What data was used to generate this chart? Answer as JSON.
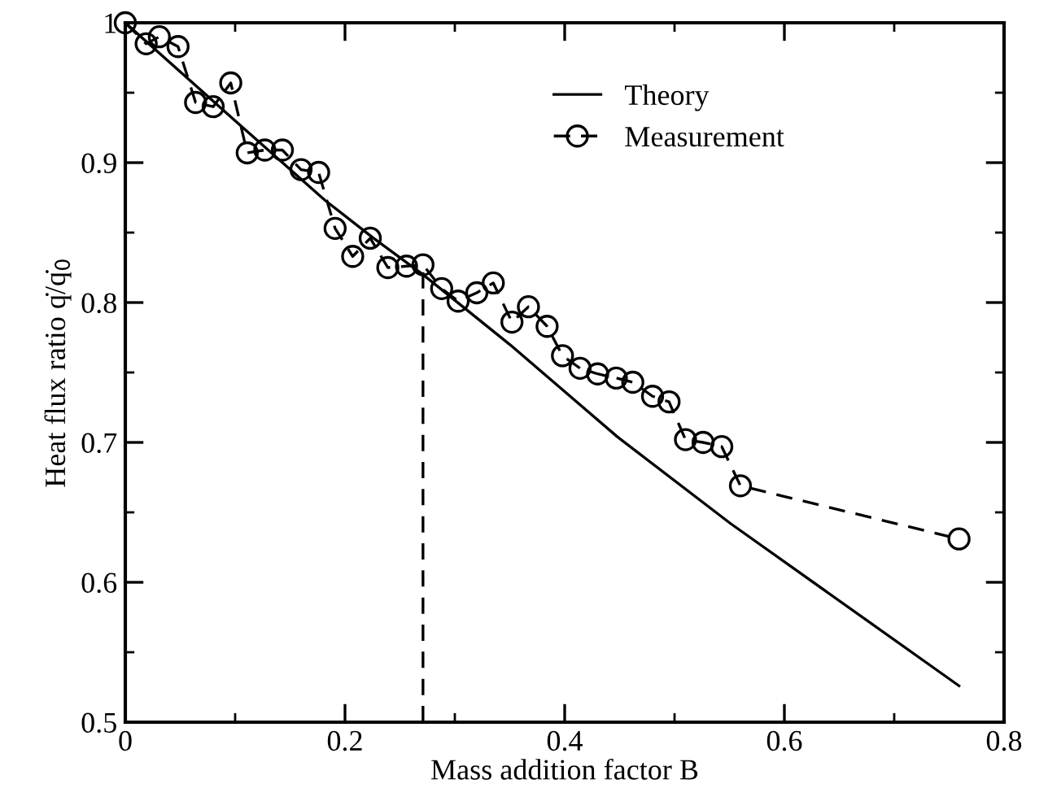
{
  "chart_data": {
    "type": "line",
    "xlabel": "Mass addition factor B",
    "ylabel": "Heat flux ratio q̇/q̇$_{0}$",
    "xlim": [
      0,
      0.8
    ],
    "ylim": [
      0.5,
      1.0
    ],
    "xticks": [
      0,
      0.2,
      0.4,
      0.6,
      0.8
    ],
    "yticks": [
      0.5,
      0.6,
      0.7,
      0.8,
      0.9,
      {
        "value": 1.0,
        "label": "1"
      }
    ],
    "grid": false,
    "legend": "top right",
    "series": [
      {
        "name": "Theory",
        "color": "#000000",
        "line_style": "solid",
        "marker": "none",
        "x": [
          0,
          0.1,
          0.182,
          0.226,
          0.271,
          0.35,
          0.448,
          0.551,
          0.759
        ],
        "values": [
          1.0,
          0.93,
          0.873,
          0.846,
          0.82,
          0.77,
          0.704,
          0.642,
          0.526
        ]
      },
      {
        "name": "Measurement",
        "color": "#000000",
        "line_style": "dashed",
        "marker": "circle",
        "x": [
          0,
          0.019,
          0.031,
          0.048,
          0.064,
          0.08,
          0.096,
          0.111,
          0.127,
          0.143,
          0.16,
          0.176,
          0.191,
          0.207,
          0.223,
          0.239,
          0.256,
          0.271,
          0.288,
          0.303,
          0.32,
          0.335,
          0.352,
          0.367,
          0.384,
          0.398,
          0.414,
          0.43,
          0.447,
          0.462,
          0.48,
          0.495,
          0.51,
          0.526,
          0.543,
          0.56,
          0.759
        ],
        "values": [
          1.0,
          0.985,
          0.99,
          0.983,
          0.943,
          0.94,
          0.957,
          0.907,
          0.909,
          0.909,
          0.895,
          0.893,
          0.853,
          0.833,
          0.846,
          0.825,
          0.826,
          0.827,
          0.81,
          0.801,
          0.807,
          0.814,
          0.786,
          0.797,
          0.783,
          0.762,
          0.753,
          0.749,
          0.746,
          0.743,
          0.733,
          0.729,
          0.702,
          0.7,
          0.697,
          0.669,
          0.631
        ]
      }
    ],
    "ref_lines": [
      {
        "axis": "x",
        "value": 0.271,
        "line_style": "dashed",
        "color": "#000000"
      }
    ]
  }
}
